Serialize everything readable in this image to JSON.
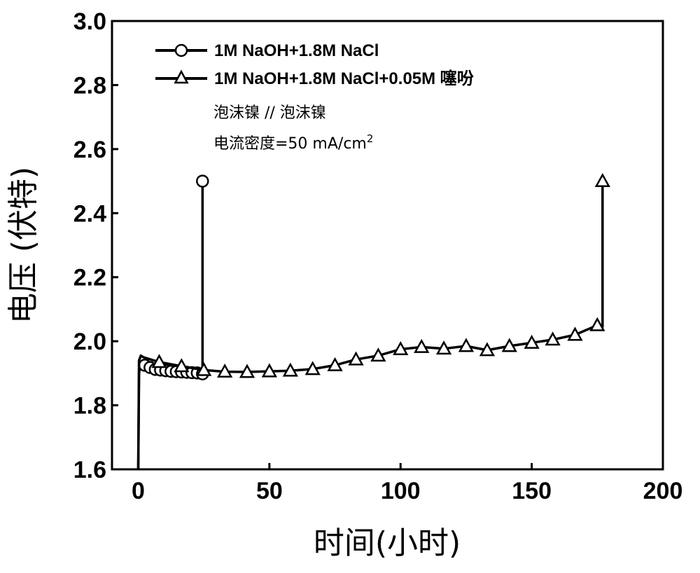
{
  "chart_data": {
    "type": "line",
    "xlabel": "时间(小时)",
    "ylabel": "电压 (伏特)",
    "xlim": [
      -10,
      200
    ],
    "ylim": [
      1.6,
      3.0
    ],
    "xticks": [
      0,
      50,
      100,
      150,
      200
    ],
    "yticks": [
      1.6,
      1.8,
      2.0,
      2.2,
      2.4,
      2.6,
      2.8,
      3.0
    ],
    "ytick_labels": [
      "1.6",
      "1.8",
      "2.0",
      "2.2",
      "2.4",
      "2.6",
      "2.8",
      "3.0"
    ],
    "legend_position": "top-left",
    "annotations": [
      "泡沫镍 // 泡沫镍",
      "电流密度=50 mA/cm",
      "2"
    ],
    "series": [
      {
        "name": "1M NaOH+1.8M NaCl",
        "marker": "circle",
        "color": "#000000",
        "x": [
          0,
          0.3,
          0.8,
          1.5,
          2.5,
          4,
          6,
          8,
          10,
          12,
          14,
          16,
          18,
          20,
          22,
          24,
          24.5,
          24.5
        ],
        "y": [
          1.6,
          1.9,
          1.925,
          1.93,
          1.925,
          1.918,
          1.912,
          1.91,
          1.908,
          1.906,
          1.905,
          1.904,
          1.903,
          1.902,
          1.901,
          1.898,
          1.898,
          2.5
        ],
        "markers_x": [
          2.5,
          4.5,
          6.5,
          8.5,
          10.5,
          12.5,
          14.5,
          16.5,
          18.5,
          20.5,
          22.5,
          24.5
        ],
        "markers_y": [
          1.925,
          1.918,
          1.912,
          1.91,
          1.908,
          1.906,
          1.905,
          1.904,
          1.903,
          1.902,
          1.901,
          1.898
        ],
        "end_marker": [
          24.5,
          2.5
        ]
      },
      {
        "name": "1M NaOH+1.8M NaCl+0.05M 噻吩",
        "marker": "triangle",
        "color": "#000000",
        "x": [
          0,
          0.3,
          1,
          2,
          8,
          16.5,
          25,
          33,
          41.5,
          50,
          58,
          66.5,
          75,
          83,
          91.5,
          100,
          108,
          116.5,
          125,
          133,
          141.5,
          150,
          158,
          166.5,
          175,
          177,
          177
        ],
        "y": [
          1.6,
          1.94,
          1.955,
          1.95,
          1.935,
          1.922,
          1.91,
          1.905,
          1.904,
          1.906,
          1.908,
          1.913,
          1.925,
          1.943,
          1.955,
          1.975,
          1.982,
          1.977,
          1.985,
          1.972,
          1.985,
          1.995,
          2.005,
          2.02,
          2.05,
          2.045,
          2.5
        ],
        "markers_x": [
          8,
          16.5,
          25,
          33,
          41.5,
          50,
          58,
          66.5,
          75,
          83,
          91.5,
          100,
          108,
          116.5,
          125,
          133,
          141.5,
          150,
          158,
          166.5,
          175
        ],
        "markers_y": [
          1.935,
          1.922,
          1.91,
          1.905,
          1.904,
          1.906,
          1.908,
          1.913,
          1.925,
          1.943,
          1.955,
          1.975,
          1.982,
          1.977,
          1.985,
          1.972,
          1.985,
          1.995,
          2.005,
          2.02,
          2.05
        ],
        "end_marker": [
          177,
          2.5
        ]
      }
    ]
  }
}
